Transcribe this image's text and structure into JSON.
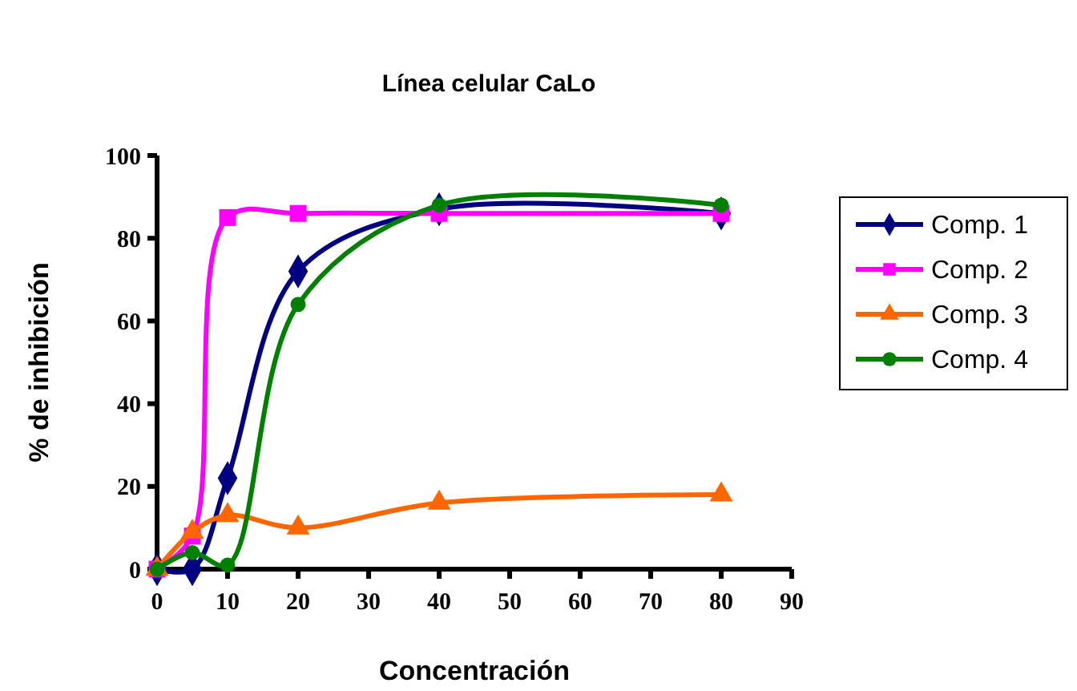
{
  "chart_data": {
    "type": "line",
    "title": "Línea celular CaLo",
    "xlabel": "Concentración",
    "ylabel": "% de inhibición",
    "x": [
      0,
      5,
      10,
      20,
      40,
      80
    ],
    "xlim": [
      0,
      90
    ],
    "xticks": [
      0,
      10,
      20,
      30,
      40,
      50,
      60,
      70,
      80,
      90
    ],
    "ylim": [
      0,
      100
    ],
    "yticks": [
      0,
      20,
      40,
      60,
      80,
      100
    ],
    "grid": false,
    "legend": "right",
    "line_style": "solid",
    "series": [
      {
        "name": "Comp. 1",
        "color": "#000080",
        "marker": "diamond",
        "values": [
          0,
          0,
          22,
          72,
          87,
          86
        ]
      },
      {
        "name": "Comp. 2",
        "color": "#ff00ff",
        "marker": "square",
        "values": [
          0,
          8,
          85,
          86,
          86,
          86
        ]
      },
      {
        "name": "Comp. 3",
        "color": "#ff6600",
        "marker": "triangle",
        "values": [
          0,
          9,
          13,
          10,
          16,
          18
        ]
      },
      {
        "name": "Comp. 4",
        "color": "#008000",
        "marker": "circle",
        "values": [
          0,
          4,
          1,
          64,
          88,
          88
        ]
      }
    ]
  }
}
